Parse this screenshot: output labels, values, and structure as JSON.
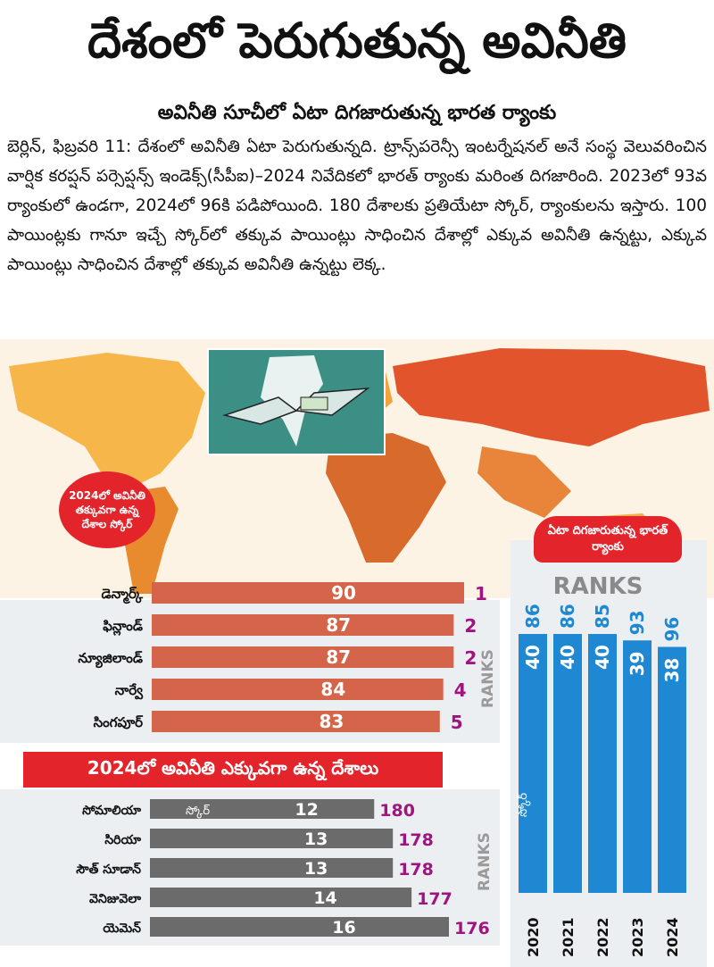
{
  "title": "దేశంలో పెరుగుతున్న అవినీతి",
  "subtitle": "అవినీతి సూచీలో ఏటా దిగజారుతున్న భారత ర్యాంకు",
  "body": "బెర్లిన్, ఫిబ్రవరి 11: దేశంలో అవినీతి ఏటా పెరుగుతున్నది. ట్రాన్స్‌పరెన్సీ ఇంటర్నేషనల్ అనే సంస్థ వెలువరించిన వార్షిక కరప్షన్ పర్సెప్షన్స్ ఇండెక్స్(సీపీఐ)–2024 నివేదికలో భారత్ ర్యాంకు మరింత దిగజారింది. 2023లో 93వ ర్యాంకులో ఉండగా, 2024లో 96కి పడిపోయింది. 180 దేశాలకు ప్రతియేటా స్కోర్, ర్యాంకులను ఇస్తారు. 100 పాయింట్లకు గానూ ఇచ్చే స్కోర్‌లో తక్కువ పాయింట్లు సాధించిన దేశాల్లో ఎక్కువ అవినీతి ఉన్నట్టు, ఎక్కువ పాయింట్లు సాధించిన దేశాల్లో తక్కువ అవినీతి ఉన్నట్టు లెక్క.",
  "colors": {
    "accent_red": "#e3242b",
    "low_bar": "#d4654a",
    "high_bar": "#6b6b6b",
    "india_bar": "#1e88d2",
    "rank_purple": "#a0147f",
    "rank_label_gray": "#9a9a9a"
  },
  "chart_data": [
    {
      "type": "bar",
      "orientation": "horizontal",
      "title": "2024లో అవినీతి తక్కువగా ఉన్న దేశాల స్కోర్",
      "categories": [
        "డెన్మార్క్",
        "ఫిన్లాండ్",
        "న్యూజిలాండ్",
        "నార్వే",
        "సింగపూర్"
      ],
      "values": [
        90,
        87,
        87,
        84,
        83
      ],
      "ranks": [
        1,
        2,
        2,
        4,
        5
      ],
      "rank_axis_label": "RANKS"
    },
    {
      "type": "bar",
      "orientation": "horizontal",
      "title": "2024లో అవినీతి ఎక్కువగా ఉన్న దేశాలు",
      "categories": [
        "సోమాలియా",
        "సిరియా",
        "సౌత్ సూడాన్",
        "వెనిజువెలా",
        "యెమెన్"
      ],
      "values": [
        12,
        13,
        13,
        14,
        16
      ],
      "ranks": [
        180,
        178,
        178,
        177,
        176
      ],
      "value_label": "స్కోర్",
      "rank_axis_label": "RANKS"
    },
    {
      "type": "bar",
      "orientation": "vertical",
      "title": "ఏటా దిగజారుతున్న భారత్ ర్యాంకు",
      "categories": [
        "2020",
        "2021",
        "2022",
        "2023",
        "2024"
      ],
      "values": [
        40,
        40,
        40,
        39,
        38
      ],
      "ranks": [
        86,
        86,
        85,
        93,
        96
      ],
      "value_label": "స్కోర్",
      "rank_axis_label": "RANKS"
    }
  ]
}
